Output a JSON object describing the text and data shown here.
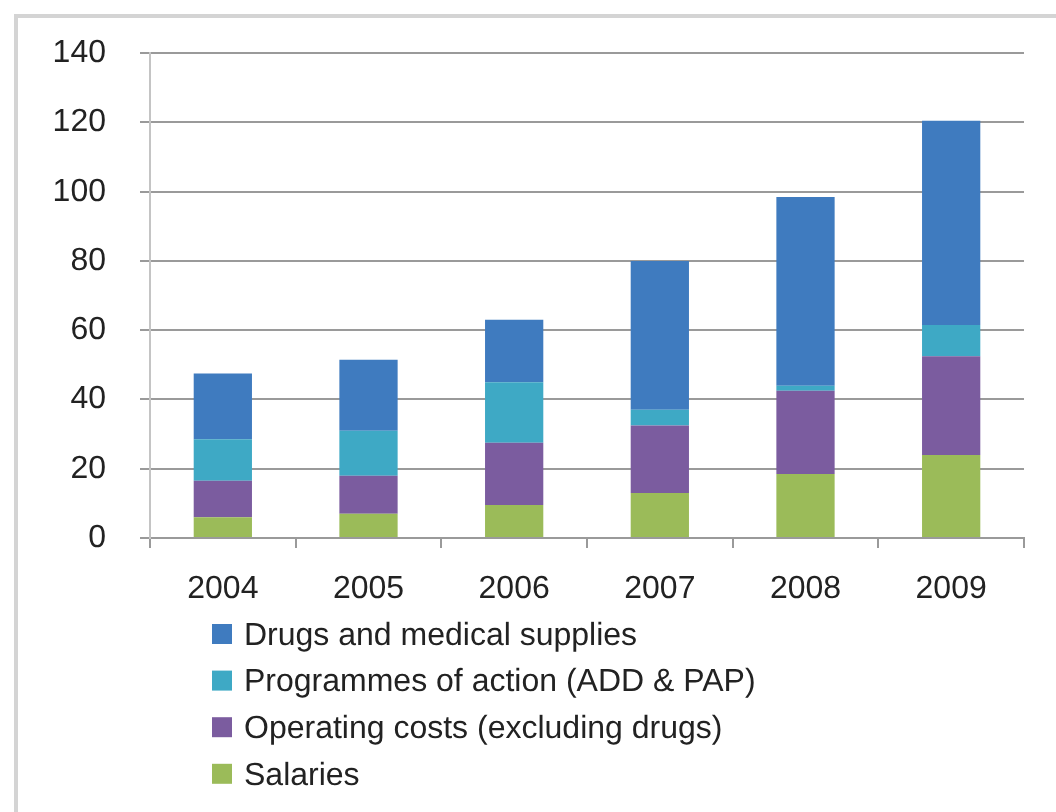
{
  "chart_data": {
    "type": "bar",
    "stacked": true,
    "categories": [
      "2004",
      "2005",
      "2006",
      "2007",
      "2008",
      "2009"
    ],
    "series": [
      {
        "name": "Salaries",
        "color": "#9bbb59",
        "values": [
          6,
          7,
          9.5,
          13,
          18.5,
          24
        ]
      },
      {
        "name": "Operating costs (excluding drugs)",
        "color": "#7b5c9f",
        "values": [
          10.5,
          11,
          18,
          19.5,
          24,
          28.5
        ]
      },
      {
        "name": "Programmes of action (ADD & PAP)",
        "color": "#3ea9c5",
        "values": [
          12,
          13,
          17.5,
          4.5,
          1.5,
          9
        ]
      },
      {
        "name": "Drugs and medical supplies",
        "color": "#3f7bbf",
        "values": [
          19,
          20.5,
          18,
          43,
          54.5,
          59
        ]
      }
    ],
    "ylim": [
      0,
      140
    ],
    "yticks": [
      0,
      20,
      40,
      60,
      80,
      100,
      120,
      140
    ],
    "grid": "y",
    "legend": "bottom"
  }
}
